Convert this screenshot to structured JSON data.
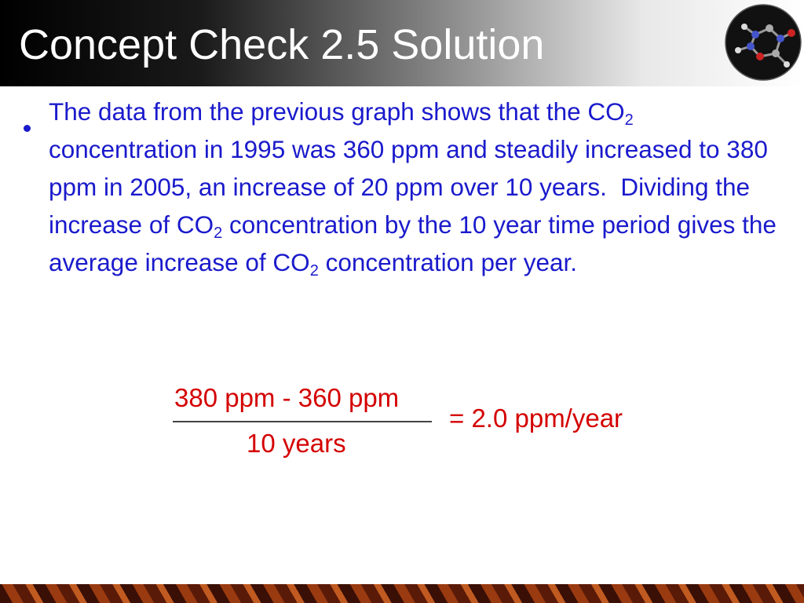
{
  "header": {
    "title": "Concept Check 2.5 Solution"
  },
  "body": {
    "runs": [
      "The data from the previous graph shows that the CO",
      "2",
      "  concentration in 1995 was 360 ppm and steadily increased to 380 ppm in 2005, an increase of 20 ppm over 10 years.  Dividing the increase of CO",
      "2",
      " concentration by the 10 year time period gives the average increase of CO",
      "2",
      " concentration per year."
    ]
  },
  "equation": {
    "numerator": "380 ppm - 360 ppm",
    "denominator": "10 years",
    "result": "= 2.0 ppm/year"
  }
}
